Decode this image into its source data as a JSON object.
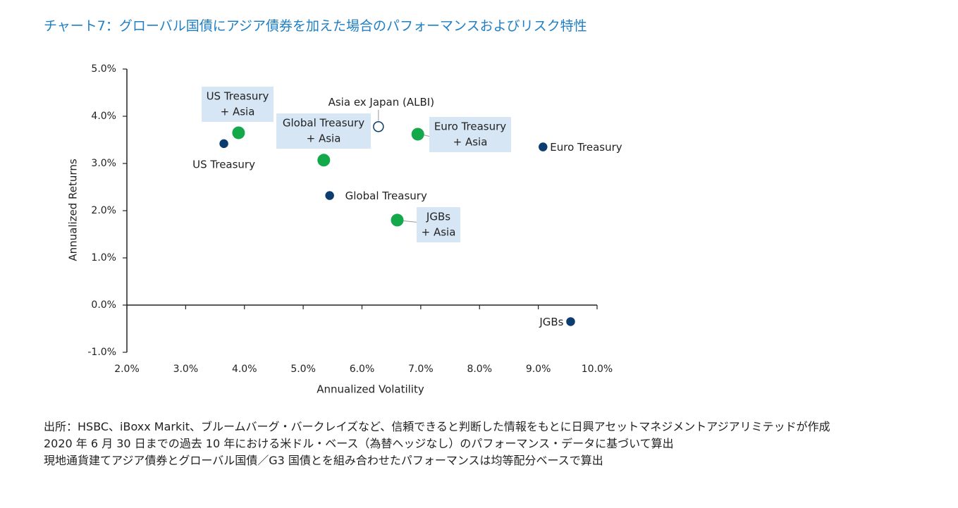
{
  "title": "チャート7：グローバル国債にアジア債券を加えた場合のパフォーマンスおよびリスク特性",
  "colors": {
    "title": "#1f7fc4",
    "standalone": "#0b3d6e",
    "combined": "#13a84a",
    "label_box": "#d6e6f5",
    "axis": "#222222"
  },
  "chart_data": {
    "type": "scatter",
    "xlabel": "Annualized Volatility",
    "ylabel": "Annualized Returns",
    "xlim": [
      2.0,
      10.0
    ],
    "ylim": [
      -1.0,
      5.0
    ],
    "x_ticks": [
      "2.0%",
      "3.0%",
      "4.0%",
      "5.0%",
      "6.0%",
      "7.0%",
      "8.0%",
      "9.0%",
      "10.0%"
    ],
    "y_ticks": [
      "5.0%",
      "4.0%",
      "3.0%",
      "2.0%",
      "1.0%",
      "0.0%",
      "-1.0%"
    ],
    "grid": false,
    "legend": "none",
    "points": [
      {
        "label": "US Treasury",
        "x": 3.65,
        "y": 3.42,
        "group": "standalone"
      },
      {
        "label": "Euro Treasury",
        "x": 9.08,
        "y": 3.35,
        "group": "standalone"
      },
      {
        "label": "Global Treasury",
        "x": 5.45,
        "y": 2.32,
        "group": "standalone"
      },
      {
        "label": "JGBs",
        "x": 9.55,
        "y": -0.35,
        "group": "standalone"
      },
      {
        "label": "Asia ex Japan (ALBI)",
        "x": 6.28,
        "y": 3.78,
        "group": "asia"
      },
      {
        "label": "US Treasury\n+ Asia",
        "x": 3.9,
        "y": 3.65,
        "group": "combined"
      },
      {
        "label": "Global Treasury\n+ Asia",
        "x": 5.35,
        "y": 3.07,
        "group": "combined"
      },
      {
        "label": "Euro Treasury\n+ Asia",
        "x": 6.95,
        "y": 3.62,
        "group": "combined"
      },
      {
        "label": "JGBs\n+ Asia",
        "x": 6.6,
        "y": 1.8,
        "group": "combined"
      }
    ]
  },
  "notes": [
    "出所：HSBC、iBoxx Markit、ブルームバーグ・バークレイズなど、信頼できると判断した情報をもとに日興アセットマネジメントアジアリミテッドが作成",
    "2020 年 6 月 30 日までの過去 10 年における米ドル・ベース（為替ヘッジなし）のパフォーマンス・データに基づいて算出",
    "現地通貨建てアジア債券とグローバル国債／G3 国債とを組み合わせたパフォーマンスは均等配分ベースで算出"
  ]
}
